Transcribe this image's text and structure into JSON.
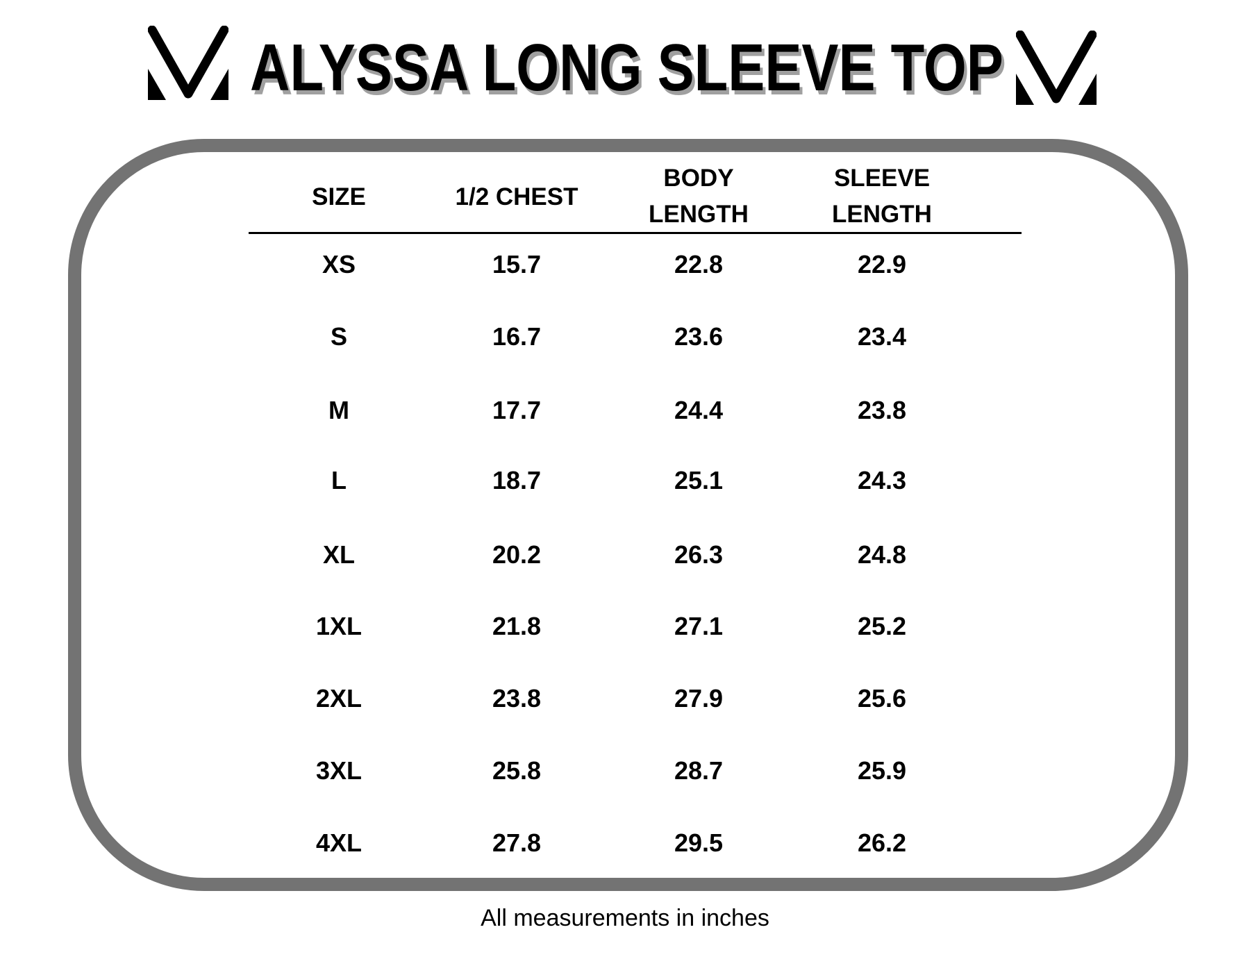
{
  "title": "ALYSSA LONG SLEEVE TOP",
  "brand_logo": "V-chevron-logo",
  "colors": {
    "border": "#737373",
    "title_shadow": "#a0a0a0",
    "text": "#000000"
  },
  "table": {
    "headers": [
      {
        "line1": "SIZE",
        "line2": ""
      },
      {
        "line1": "1/2 CHEST",
        "line2": ""
      },
      {
        "line1": "BODY",
        "line2": "LENGTH"
      },
      {
        "line1": "SLEEVE",
        "line2": "LENGTH"
      }
    ],
    "rows": [
      [
        "XS",
        "15.7",
        "22.8",
        "22.9"
      ],
      [
        "S",
        "16.7",
        "23.6",
        "23.4"
      ],
      [
        "M",
        "17.7",
        "24.4",
        "23.8"
      ],
      [
        "L",
        "18.7",
        "25.1",
        "24.3"
      ],
      [
        "XL",
        "20.2",
        "26.3",
        "24.8"
      ],
      [
        "1XL",
        "21.8",
        "27.1",
        "25.2"
      ],
      [
        "2XL",
        "23.8",
        "27.9",
        "25.6"
      ],
      [
        "3XL",
        "25.8",
        "28.7",
        "25.9"
      ],
      [
        "4XL",
        "27.8",
        "29.5",
        "26.2"
      ]
    ]
  },
  "footer": "All measurements in inches"
}
